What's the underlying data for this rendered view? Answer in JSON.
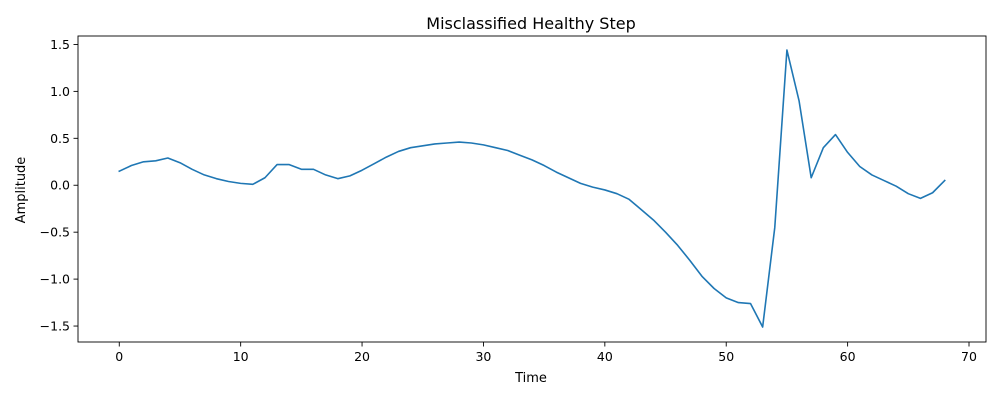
{
  "chart_data": {
    "type": "line",
    "title": "Misclassified Healthy Step",
    "xlabel": "Time",
    "ylabel": "Amplitude",
    "xlim": [
      -3.4,
      71.4
    ],
    "ylim": [
      -1.67,
      1.59
    ],
    "xticks": [
      0,
      10,
      20,
      30,
      40,
      50,
      60,
      70
    ],
    "yticks": [
      -1.5,
      -1.0,
      -0.5,
      0.0,
      0.5,
      1.0,
      1.5
    ],
    "ytick_labels": [
      "−1.5",
      "−1.0",
      "−0.5",
      "0.0",
      "0.5",
      "1.0",
      "1.5"
    ],
    "grid": false,
    "line_color": "#1f77b4",
    "series": [
      {
        "x": [
          0,
          1,
          2,
          3,
          4,
          5,
          6,
          7,
          8,
          9,
          10,
          11,
          12,
          13,
          14,
          15,
          16,
          17,
          18,
          19,
          20,
          21,
          22,
          23,
          24,
          25,
          26,
          27,
          28,
          29,
          30,
          31,
          32,
          33,
          34,
          35,
          36,
          37,
          38,
          39,
          40,
          41,
          42,
          43,
          44,
          45,
          46,
          47,
          48,
          49,
          50,
          51,
          52,
          53,
          54,
          55,
          56,
          57,
          58,
          59,
          60,
          61,
          62,
          63,
          64,
          65,
          66,
          67,
          68
        ],
        "values": [
          0.15,
          0.21,
          0.25,
          0.26,
          0.29,
          0.24,
          0.17,
          0.11,
          0.07,
          0.04,
          0.02,
          0.01,
          0.08,
          0.22,
          0.22,
          0.17,
          0.17,
          0.11,
          0.07,
          0.1,
          0.16,
          0.23,
          0.3,
          0.36,
          0.4,
          0.42,
          0.44,
          0.45,
          0.46,
          0.45,
          0.43,
          0.4,
          0.37,
          0.32,
          0.27,
          0.21,
          0.14,
          0.08,
          0.02,
          -0.02,
          -0.05,
          -0.09,
          -0.15,
          -0.26,
          -0.37,
          -0.5,
          -0.64,
          -0.8,
          -0.97,
          -1.1,
          -1.2,
          -1.25,
          -1.26,
          -1.51,
          -0.45,
          1.44,
          0.9,
          0.08,
          0.4,
          0.54,
          0.35,
          0.2,
          0.11,
          0.05,
          -0.01,
          -0.09,
          -0.14,
          -0.08,
          0.05
        ]
      }
    ]
  }
}
